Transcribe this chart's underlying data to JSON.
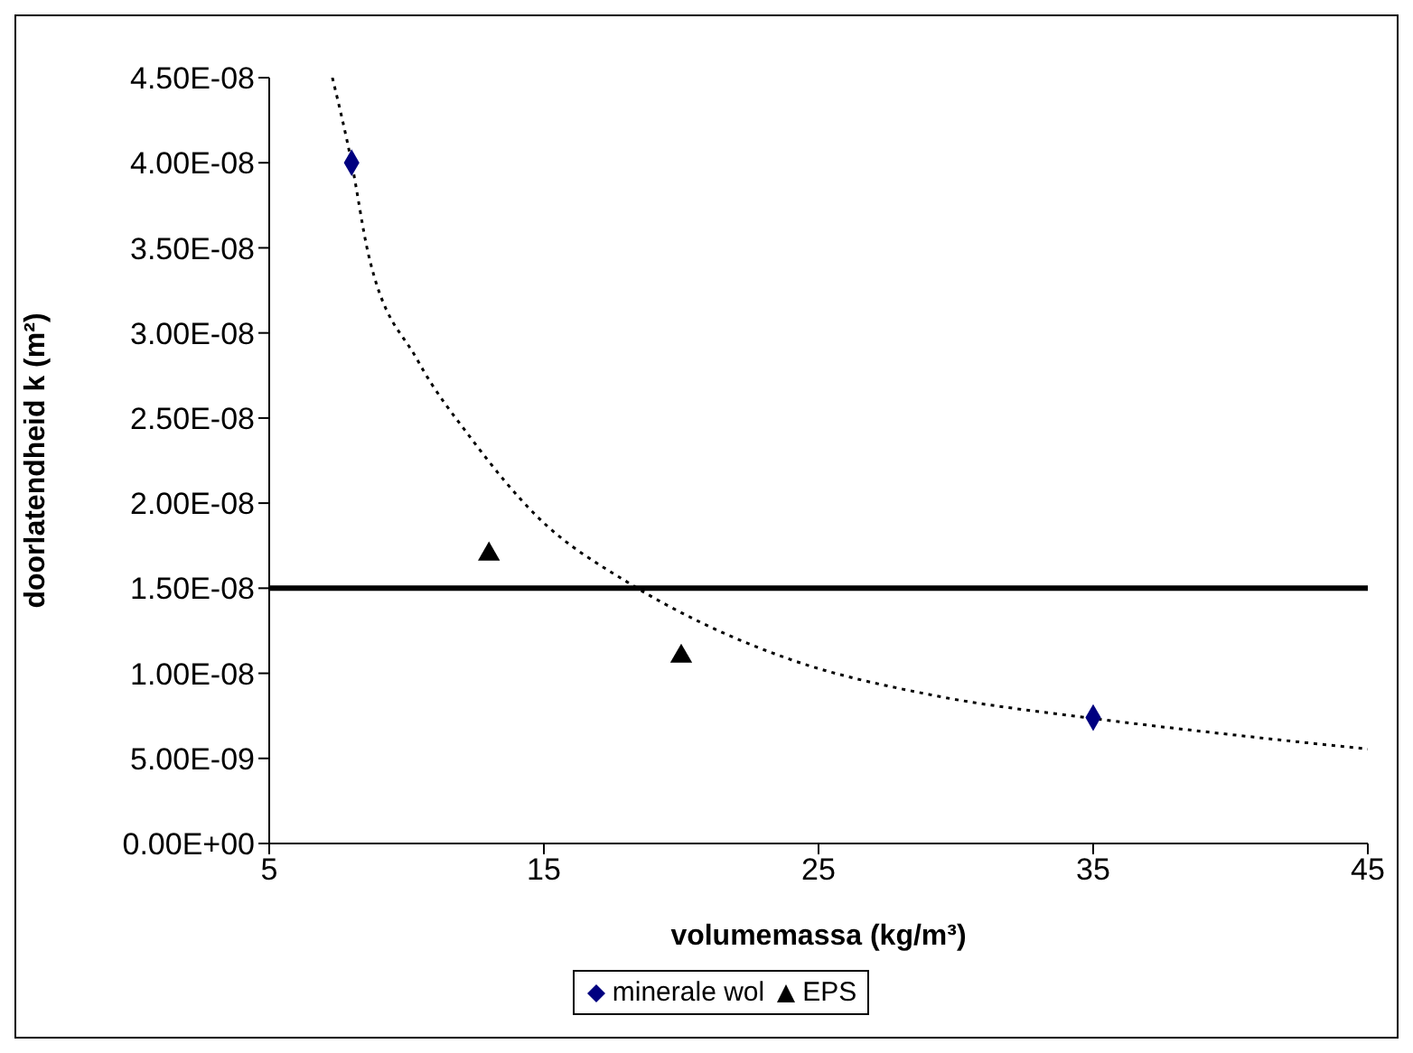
{
  "chart_data": {
    "type": "scatter",
    "xlabel": "volumemassa (kg/m³)",
    "ylabel": "doorlatendheid k (m²)",
    "xlim": [
      5,
      45
    ],
    "xticks": [
      5,
      15,
      25,
      35,
      45
    ],
    "ylim": [
      0,
      4.5e-08
    ],
    "yticks": [
      {
        "value": 0,
        "label": "0.00E+00"
      },
      {
        "value": 5e-09,
        "label": "5.00E-09"
      },
      {
        "value": 1e-08,
        "label": "1.00E-08"
      },
      {
        "value": 1.5e-08,
        "label": "1.50E-08"
      },
      {
        "value": 2e-08,
        "label": "2.00E-08"
      },
      {
        "value": 2.5e-08,
        "label": "2.50E-08"
      },
      {
        "value": 3e-08,
        "label": "3.00E-08"
      },
      {
        "value": 3.5e-08,
        "label": "3.50E-08"
      },
      {
        "value": 4e-08,
        "label": "4.00E-08"
      },
      {
        "value": 4.5e-08,
        "label": "4.50E-08"
      }
    ],
    "series": [
      {
        "name": "minerale wol",
        "color": "#000080",
        "marker": "diamond",
        "x": [
          8,
          35
        ],
        "values": [
          4e-08,
          7.4e-09
        ]
      },
      {
        "name": "EPS",
        "color": "#000000",
        "marker": "triangle",
        "x": [
          13,
          20
        ],
        "values": [
          1.7e-08,
          1.1e-08
        ]
      },
      {
        "type": "line",
        "color": "#000000",
        "line_style": "dotted",
        "marker": "none",
        "x": [
          7.3,
          8,
          8.6,
          10.4,
          12.4,
          14.7,
          18.2,
          20.7,
          24,
          29.2,
          35,
          40,
          45
        ],
        "values": [
          4.5e-08,
          4e-08,
          3.47e-08,
          2.84e-08,
          2.37e-08,
          1.93e-08,
          1.52e-08,
          1.3e-08,
          1.08e-08,
          8.7e-09,
          7.35e-09,
          6.4e-09,
          5.55e-09
        ]
      }
    ],
    "ref_lines": [
      {
        "axis": "y",
        "value": 1.5e-08,
        "color": "#000000",
        "line_style": "solid"
      }
    ],
    "grid": false,
    "legend": "bottom"
  }
}
